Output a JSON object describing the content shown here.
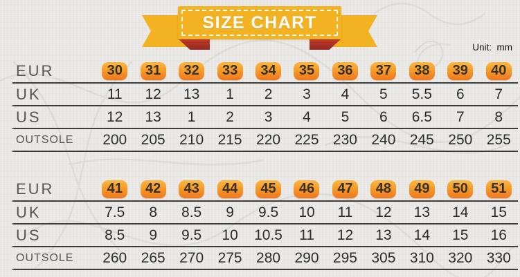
{
  "banner": {
    "title": "SIZE CHART"
  },
  "unit_label": "Unit:  mm",
  "colors": {
    "background": "#e8e7e4",
    "ribbon_yellow": "#f2b222",
    "ribbon_fold": "#c8392b",
    "badge_top": "#fcb741",
    "badge_bottom": "#f0761c",
    "line": "#3c3c3c",
    "label_text": "#565656",
    "value_text": "#2c2c2c"
  },
  "tables": [
    {
      "rows": [
        {
          "label": "EUR",
          "badge": true,
          "values": [
            "30",
            "31",
            "32",
            "33",
            "34",
            "35",
            "36",
            "37",
            "38",
            "39",
            "40"
          ]
        },
        {
          "label": "UK",
          "badge": false,
          "values": [
            "11",
            "12",
            "13",
            "1",
            "2",
            "3",
            "4",
            "5",
            "5.5",
            "6",
            "7"
          ]
        },
        {
          "label": "US",
          "badge": false,
          "values": [
            "12",
            "13",
            "1",
            "2",
            "3",
            "4",
            "5",
            "6",
            "6.5",
            "7",
            "8"
          ]
        },
        {
          "label": "OUTSOLE",
          "badge": false,
          "values": [
            "200",
            "205",
            "210",
            "215",
            "220",
            "225",
            "230",
            "240",
            "245",
            "250",
            "255"
          ]
        }
      ]
    },
    {
      "rows": [
        {
          "label": "EUR",
          "badge": true,
          "values": [
            "41",
            "42",
            "43",
            "44",
            "45",
            "46",
            "47",
            "48",
            "49",
            "50",
            "51"
          ]
        },
        {
          "label": "UK",
          "badge": false,
          "values": [
            "7.5",
            "8",
            "8.5",
            "9",
            "9.5",
            "10",
            "11",
            "12",
            "13",
            "14",
            "15"
          ]
        },
        {
          "label": "US",
          "badge": false,
          "values": [
            "8.5",
            "9",
            "9.5",
            "10",
            "10.5",
            "11",
            "12",
            "13",
            "14",
            "15",
            "16"
          ]
        },
        {
          "label": "OUTSOLE",
          "badge": false,
          "values": [
            "260",
            "265",
            "270",
            "275",
            "280",
            "290",
            "295",
            "305",
            "310",
            "320",
            "330"
          ]
        }
      ]
    }
  ],
  "chart_data": {
    "type": "table",
    "title": "SIZE CHART",
    "unit": "mm",
    "columns": [
      "EUR",
      "UK",
      "US",
      "OUTSOLE"
    ],
    "rows": [
      [
        30,
        11,
        12,
        200
      ],
      [
        31,
        12,
        13,
        205
      ],
      [
        32,
        13,
        1,
        210
      ],
      [
        33,
        1,
        2,
        215
      ],
      [
        34,
        2,
        3,
        220
      ],
      [
        35,
        3,
        4,
        225
      ],
      [
        36,
        4,
        5,
        230
      ],
      [
        37,
        5,
        6,
        240
      ],
      [
        38,
        5.5,
        6.5,
        245
      ],
      [
        39,
        6,
        7,
        250
      ],
      [
        40,
        7,
        8,
        255
      ],
      [
        41,
        7.5,
        8.5,
        260
      ],
      [
        42,
        8,
        9,
        265
      ],
      [
        43,
        8.5,
        9.5,
        270
      ],
      [
        44,
        9,
        10,
        275
      ],
      [
        45,
        9.5,
        10.5,
        280
      ],
      [
        46,
        10,
        11,
        290
      ],
      [
        47,
        11,
        12,
        295
      ],
      [
        48,
        12,
        13,
        305
      ],
      [
        49,
        13,
        14,
        310
      ],
      [
        50,
        14,
        15,
        320
      ],
      [
        51,
        15,
        16,
        330
      ]
    ]
  }
}
